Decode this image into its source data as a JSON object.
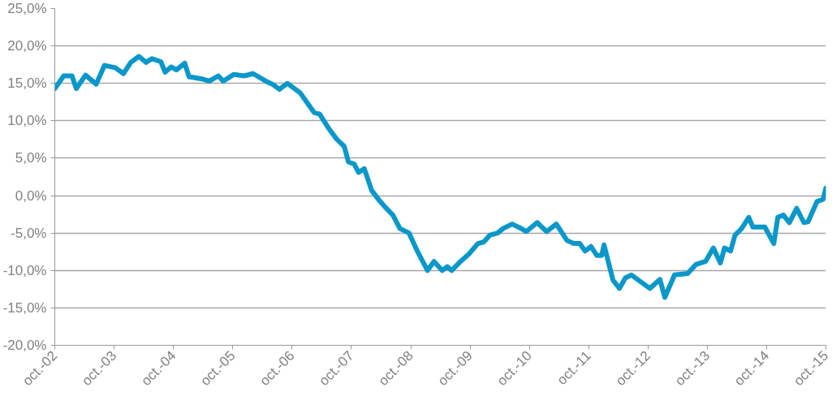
{
  "chart_data": {
    "type": "line",
    "grid": "y",
    "line_style": "solid",
    "marker": "none",
    "x": [
      "2002-10-01",
      "2002-11-25",
      "2003-01-15",
      "2003-02-10",
      "2003-04-08",
      "2003-06-13",
      "2003-08-03",
      "2003-10-08",
      "2003-11-28",
      "2004-01-12",
      "2004-03-02",
      "2004-04-15",
      "2004-05-21",
      "2004-07-15",
      "2004-08-10",
      "2004-09-16",
      "2004-10-19",
      "2004-12-09",
      "2005-01-04",
      "2005-03-24",
      "2005-05-10",
      "2005-07-04",
      "2005-08-03",
      "2005-10-08",
      "2005-12-09",
      "2006-02-03",
      "2006-04-22",
      "2006-06-02",
      "2006-07-15",
      "2006-09-02",
      "2006-11-21",
      "2007-02-14",
      "2007-03-20",
      "2007-05-14",
      "2007-07-04",
      "2007-08-18",
      "2007-09-13",
      "2007-10-19",
      "2007-11-14",
      "2007-12-20",
      "2008-02-03",
      "2008-03-16",
      "2008-05-03",
      "2008-06-13",
      "2008-07-26",
      "2008-09-20",
      "2008-11-10",
      "2009-01-12",
      "2009-02-21",
      "2009-04-12",
      "2009-05-14",
      "2009-06-09",
      "2009-08-03",
      "2009-09-24",
      "2009-11-18",
      "2009-12-24",
      "2010-01-30",
      "2010-03-20",
      "2010-04-22",
      "2010-06-17",
      "2010-08-03",
      "2010-09-13",
      "2010-11-18",
      "2011-01-15",
      "2011-03-16",
      "2011-05-21",
      "2011-07-01",
      "2011-08-07",
      "2011-09-09",
      "2011-10-15",
      "2011-11-21",
      "2011-12-20",
      "2012-01-04",
      "2012-02-28",
      "2012-04-08",
      "2012-05-14",
      "2012-06-20",
      "2012-10-12",
      "2012-12-13",
      "2013-01-12",
      "2013-03-13",
      "2013-06-02",
      "2013-07-23",
      "2013-09-20",
      "2013-11-07",
      "2013-12-20",
      "2014-01-15",
      "2014-02-21",
      "2014-03-20",
      "2014-04-30",
      "2014-06-13",
      "2014-07-08",
      "2014-09-20",
      "2014-11-14",
      "2014-12-09",
      "2015-01-12",
      "2015-02-18",
      "2015-04-04",
      "2015-05-18",
      "2015-06-13",
      "2015-08-07",
      "2015-09-13",
      "2015-10-01"
    ],
    "series": [
      {
        "color": "#0a97c9",
        "values": [
          14.3,
          16.0,
          16.0,
          14.3,
          16.1,
          14.9,
          17.4,
          17.1,
          16.3,
          17.8,
          18.6,
          17.8,
          18.3,
          17.9,
          16.5,
          17.2,
          16.8,
          17.7,
          15.9,
          15.6,
          15.3,
          16.0,
          15.3,
          16.2,
          16.0,
          16.3,
          15.3,
          14.9,
          14.2,
          15.0,
          13.7,
          11.1,
          10.9,
          9.0,
          7.5,
          6.6,
          4.5,
          4.2,
          3.1,
          3.6,
          0.7,
          -0.5,
          -1.7,
          -2.6,
          -4.4,
          -5.0,
          -7.4,
          -10.0,
          -8.8,
          -10.0,
          -9.5,
          -10.0,
          -8.8,
          -7.8,
          -6.4,
          -6.2,
          -5.3,
          -5.0,
          -4.4,
          -3.8,
          -4.3,
          -4.8,
          -3.6,
          -4.8,
          -3.8,
          -6.0,
          -6.4,
          -6.4,
          -7.4,
          -6.8,
          -8.0,
          -8.0,
          -6.6,
          -11.3,
          -12.4,
          -11.0,
          -10.6,
          -12.4,
          -11.2,
          -13.6,
          -10.6,
          -10.4,
          -9.2,
          -8.8,
          -7.0,
          -9.0,
          -7.0,
          -7.4,
          -5.3,
          -4.4,
          -2.9,
          -4.2,
          -4.2,
          -6.4,
          -2.9,
          -2.6,
          -3.6,
          -1.7,
          -3.6,
          -3.5,
          -0.8,
          -0.5,
          1.0
        ]
      }
    ],
    "xlim": [
      "2002-10-01",
      "2015-10-01"
    ],
    "xticks": [
      {
        "value": "2002-10-01",
        "label": "oct.-02"
      },
      {
        "value": "2003-10-01",
        "label": "oct.-03"
      },
      {
        "value": "2004-10-01",
        "label": "oct.-04"
      },
      {
        "value": "2005-10-01",
        "label": "oct.-05"
      },
      {
        "value": "2006-10-01",
        "label": "oct.-06"
      },
      {
        "value": "2007-10-01",
        "label": "oct.-07"
      },
      {
        "value": "2008-10-01",
        "label": "oct.-08"
      },
      {
        "value": "2009-10-01",
        "label": "oct.-09"
      },
      {
        "value": "2010-10-01",
        "label": "oct.-10"
      },
      {
        "value": "2011-10-01",
        "label": "oct.-11"
      },
      {
        "value": "2012-10-01",
        "label": "oct.-12"
      },
      {
        "value": "2013-10-01",
        "label": "oct.-13"
      },
      {
        "value": "2014-10-01",
        "label": "oct.-14"
      },
      {
        "value": "2015-10-01",
        "label": "oct.-15"
      }
    ],
    "ylim": [
      -20,
      25
    ],
    "yticks": [
      {
        "value": -20,
        "label": "-20,0%"
      },
      {
        "value": -15,
        "label": "-15,0%"
      },
      {
        "value": -10,
        "label": "-10,0%"
      },
      {
        "value": -5,
        "label": "-5,0%"
      },
      {
        "value": 0,
        "label": "0,0%"
      },
      {
        "value": 5,
        "label": "5,0%"
      },
      {
        "value": 10,
        "label": "10,0%"
      },
      {
        "value": 15,
        "label": "15,0%"
      },
      {
        "value": 20,
        "label": "20,0%"
      },
      {
        "value": 25,
        "label": "25,0%"
      }
    ]
  }
}
